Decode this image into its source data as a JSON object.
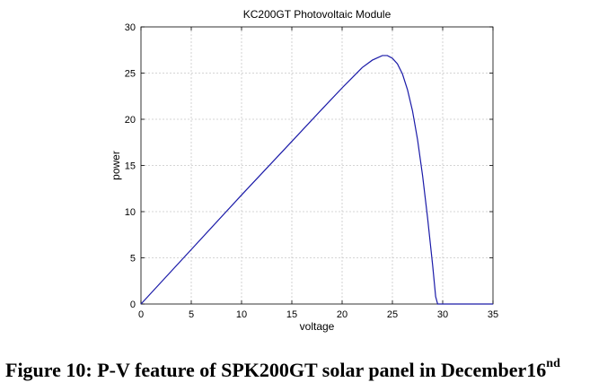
{
  "chart_data": {
    "type": "line",
    "title": "KC200GT Photovoltaic Module",
    "xlabel": "voltage",
    "ylabel": "power",
    "xlim": [
      0,
      35
    ],
    "ylim": [
      0,
      30
    ],
    "xticks": [
      0,
      5,
      10,
      15,
      20,
      25,
      30,
      35
    ],
    "yticks": [
      0,
      5,
      10,
      15,
      20,
      25,
      30
    ],
    "grid": true,
    "series": [
      {
        "color": "#1a1aa8",
        "x": [
          0,
          5,
          10,
          15,
          18,
          20,
          21,
          22,
          23,
          24,
          24.5,
          25,
          25.5,
          26,
          26.5,
          27,
          27.5,
          28,
          28.5,
          29,
          29.3,
          29.5,
          30,
          35
        ],
        "y": [
          0,
          5.9,
          11.8,
          17.6,
          21.1,
          23.4,
          24.5,
          25.6,
          26.4,
          26.9,
          26.9,
          26.6,
          26.0,
          24.9,
          23.2,
          20.9,
          17.8,
          13.9,
          9.3,
          4.2,
          0.8,
          0,
          0,
          0
        ]
      }
    ]
  },
  "caption": {
    "main": "Figure 10: P-V feature of SPK200GT solar panel in December16",
    "superscript": "nd"
  }
}
